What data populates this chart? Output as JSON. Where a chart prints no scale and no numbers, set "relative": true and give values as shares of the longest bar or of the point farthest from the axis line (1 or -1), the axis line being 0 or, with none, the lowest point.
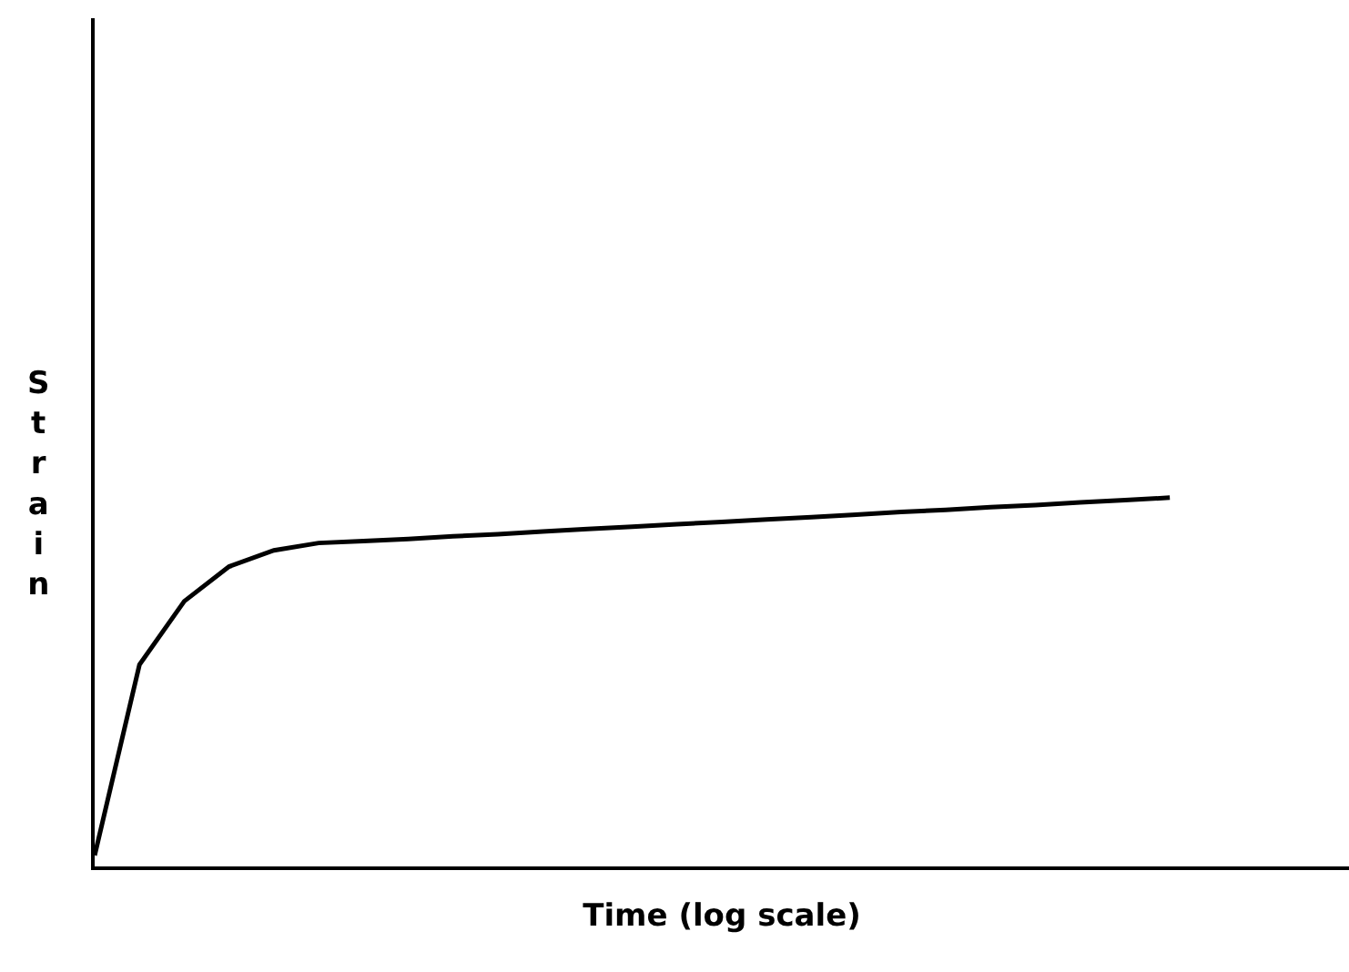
{
  "chart_data": {
    "type": "line",
    "xlabel": "Time (log scale)",
    "ylabel": "Strain",
    "relative": true,
    "color": "#000000",
    "categories": [
      null,
      null,
      null,
      null,
      null,
      null,
      null,
      null,
      null,
      null,
      null,
      null,
      null,
      null,
      null,
      null,
      null,
      null,
      null,
      null,
      null,
      null,
      null,
      null,
      null,
      null,
      null,
      null,
      null
    ],
    "values": [
      0.03,
      0.547,
      0.719,
      0.813,
      0.857,
      0.877,
      0.882,
      0.888,
      0.895,
      0.901,
      0.908,
      0.915,
      0.921,
      0.928,
      0.934,
      0.941,
      0.947,
      0.954,
      0.961,
      0.967,
      0.974,
      0.98,
      0.987,
      0.993,
      1.0,
      null,
      null,
      null,
      null
    ]
  }
}
